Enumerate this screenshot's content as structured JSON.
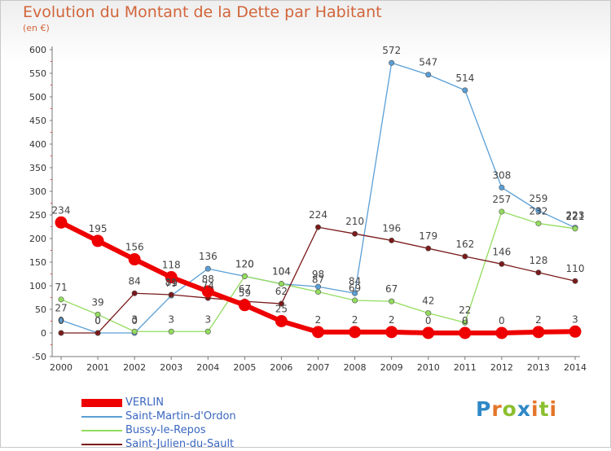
{
  "title": "Evolution du Montant de la Dette par Habitant",
  "subtitle": "(en €)",
  "brand": {
    "letters": [
      "P",
      "r",
      "o",
      "x",
      "i",
      "t",
      "i"
    ],
    "colors": [
      "#2f88c6",
      "#e3762a",
      "#8bbf2f",
      "#2f88c6",
      "#e3762a",
      "#8bbf2f",
      "#e3762a"
    ]
  },
  "chart_data": {
    "type": "line",
    "title": "Evolution du Montant de la Dette par Habitant",
    "ylabel": "(en €)",
    "xlabel": "",
    "x": [
      "2000",
      "2001",
      "2002",
      "2003",
      "2004",
      "2005",
      "2006",
      "2007",
      "2008",
      "2009",
      "2010",
      "2011",
      "2012",
      "2013",
      "2014"
    ],
    "ylim": [
      -50,
      600
    ],
    "yticks": [
      "-50",
      "0",
      "50",
      "100",
      "150",
      "200",
      "250",
      "300",
      "350",
      "400",
      "450",
      "500",
      "550",
      "600"
    ],
    "grid": false,
    "legend_position": "bottom-left",
    "series": [
      {
        "name": "VERLIN",
        "color": "#ee0000",
        "width": 6,
        "values": [
          234,
          195,
          156,
          118,
          88,
          59,
          25,
          2,
          2,
          2,
          0,
          0,
          0,
          2,
          3
        ]
      },
      {
        "name": "Saint-Martin-d'Ordon",
        "color": "#5a9fd6",
        "width": 1.3,
        "values": [
          27,
          0,
          0,
          79,
          136,
          120,
          104,
          98,
          84,
          572,
          547,
          514,
          308,
          259,
          223
        ]
      },
      {
        "name": "Bussy-le-Repos",
        "color": "#93dc5e",
        "width": 1.3,
        "values": [
          71,
          39,
          3,
          3,
          3,
          120,
          104,
          87,
          69,
          67,
          42,
          22,
          257,
          232,
          221
        ]
      },
      {
        "name": "Saint-Julien-du-Sault",
        "color": "#7a1a1a",
        "width": 1.3,
        "values": [
          0,
          0,
          84,
          81,
          74,
          67,
          62,
          224,
          210,
          196,
          179,
          162,
          146,
          128,
          110
        ]
      }
    ]
  }
}
